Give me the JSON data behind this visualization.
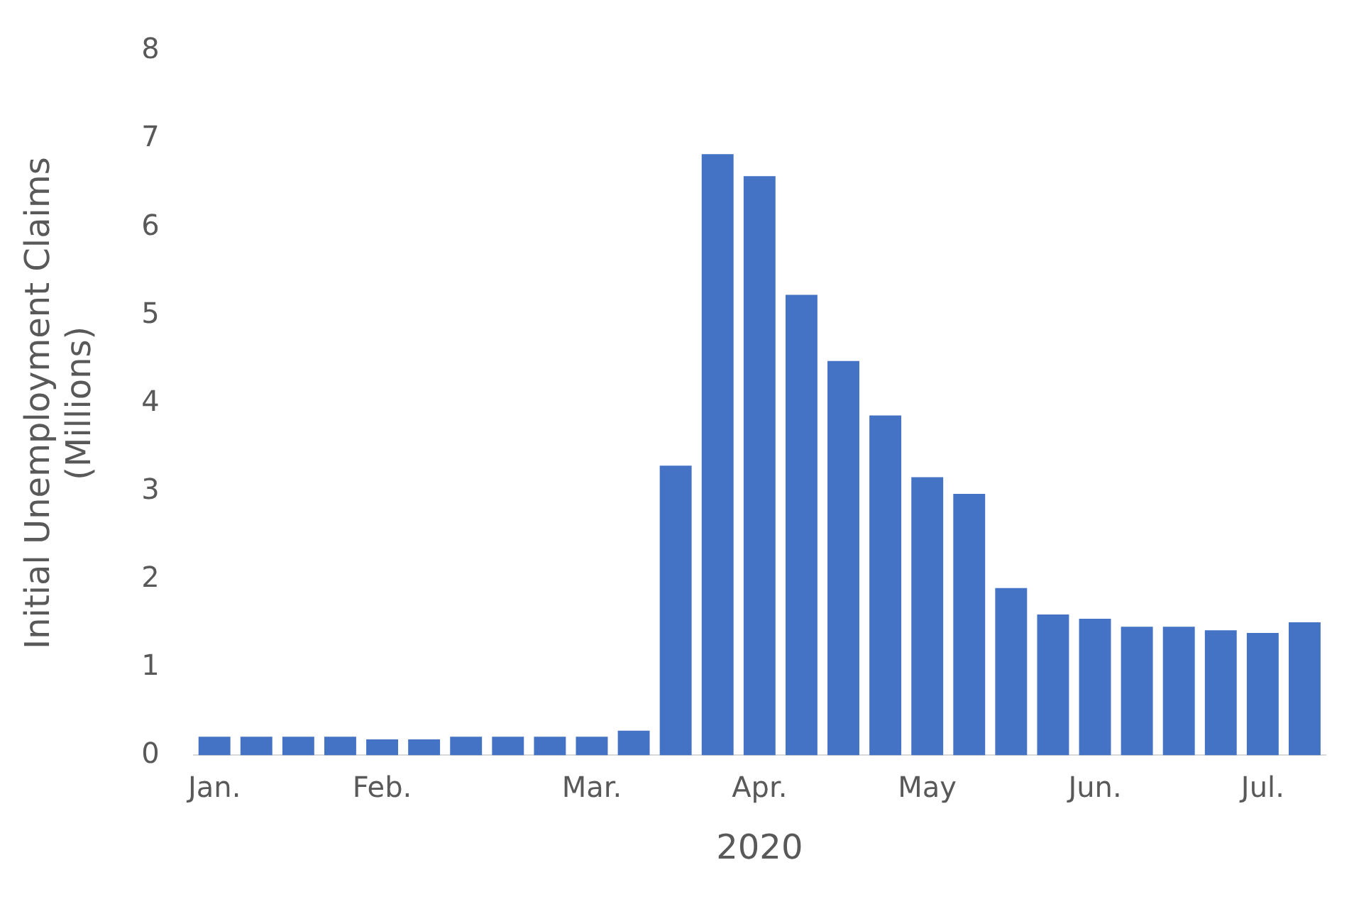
{
  "chart_data": {
    "type": "bar",
    "xlabel": "2020",
    "ylabel": "Initial Unemployment Claims (Millions)",
    "categories": [
      "Jan.",
      null,
      null,
      null,
      "Feb.",
      null,
      null,
      null,
      null,
      "Mar.",
      null,
      null,
      null,
      "Apr.",
      null,
      null,
      null,
      "May",
      null,
      null,
      null,
      "Jun.",
      null,
      null,
      null,
      "Jul.",
      null
    ],
    "values": [
      0.21,
      0.21,
      0.21,
      0.21,
      0.18,
      0.18,
      0.21,
      0.21,
      0.21,
      0.21,
      0.28,
      3.29,
      6.83,
      6.58,
      5.23,
      4.48,
      3.86,
      3.16,
      2.97,
      1.9,
      1.6,
      1.55,
      1.46,
      1.46,
      1.42,
      1.39,
      1.51
    ],
    "color": "#4472c4",
    "ylim": [
      0,
      8
    ],
    "yticks": [
      0,
      1,
      2,
      3,
      4,
      5,
      6,
      7,
      8
    ],
    "grid": false,
    "legend": false
  }
}
